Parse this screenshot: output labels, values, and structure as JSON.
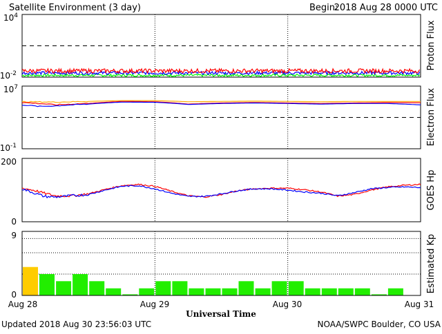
{
  "header": {
    "title": "Satellite Environment (3 day)",
    "begin_label": "Begin:",
    "begin_value": "2018 Aug 28 0000 UTC"
  },
  "footer": {
    "updated": "Updated 2018 Aug 30 23:56:03 UTC",
    "credit": "NOAA/SWPC Boulder, CO USA",
    "xlabel": "Universal Time"
  },
  "x_ticks": [
    "Aug 28",
    "Aug 29",
    "Aug 30",
    "Aug 31"
  ],
  "colors": {
    "red": "#ff0000",
    "blue": "#0000ff",
    "green": "#00ff00",
    "orange": "#ffaa00",
    "kp_green": "#22ee00",
    "kp_yellow": "#ffcc00"
  },
  "chart_data": [
    {
      "type": "line",
      "ylabel": "Proton Flux",
      "yscale": "log",
      "ylim": [
        0.01,
        10000
      ],
      "ytick_top": {
        "base": "10",
        "exp": "4"
      },
      "ytick_bottom": {
        "base": "10",
        "exp": "-2"
      },
      "threshold": 10,
      "series": [
        {
          "color": "#ff0000",
          "level": 0.04,
          "jitter": 0.2
        },
        {
          "color": "#0000ff",
          "level": 0.025,
          "jitter": 0.15
        },
        {
          "color": "#00ff00",
          "level": 0.015,
          "jitter": 0.12
        }
      ]
    },
    {
      "type": "line",
      "ylabel": "Electron Flux",
      "yscale": "log",
      "ylim": [
        0.1,
        10000000
      ],
      "ytick_top": {
        "base": "10",
        "exp": "7"
      },
      "ytick_bottom": {
        "base": "10",
        "exp": "-1"
      },
      "threshold": 1000,
      "series": [
        {
          "color": "#ffaa00",
          "hours": [
            0,
            6,
            12,
            18,
            24,
            30,
            36,
            42,
            48,
            54,
            60,
            66,
            72
          ],
          "values": [
            100000,
            90000,
            110000,
            140000,
            140000,
            100000,
            110000,
            120000,
            110000,
            100000,
            110000,
            110000,
            110000
          ]
        },
        {
          "color": "#ff0000",
          "hours": [
            0,
            6,
            12,
            18,
            24,
            30,
            36,
            42,
            48,
            54,
            60,
            66,
            72
          ],
          "values": [
            80000,
            40000,
            60000,
            110000,
            100000,
            50000,
            70000,
            80000,
            70000,
            60000,
            70000,
            80000,
            75000
          ]
        },
        {
          "color": "#0000ff",
          "hours": [
            0,
            3,
            6,
            12,
            18,
            24,
            30,
            36,
            42,
            48,
            54,
            60,
            66,
            72
          ],
          "values": [
            40000,
            25000,
            30000,
            50000,
            90000,
            85000,
            45000,
            60000,
            70000,
            60000,
            50000,
            60000,
            60000,
            40000
          ]
        }
      ]
    },
    {
      "type": "line",
      "ylabel": "GOES Hp",
      "yscale": "linear",
      "ylim": [
        0,
        200
      ],
      "ytick_top": "200",
      "ytick_bottom": "0",
      "series": [
        {
          "color": "#ff0000",
          "hours": [
            0,
            2,
            4,
            6,
            9,
            12,
            15,
            18,
            21,
            24,
            27,
            30,
            33,
            36,
            39,
            42,
            45,
            48,
            51,
            54,
            57,
            60,
            63,
            66,
            69,
            72
          ],
          "values": [
            106,
            100,
            90,
            82,
            82,
            88,
            102,
            114,
            118,
            112,
            96,
            82,
            78,
            86,
            98,
            104,
            106,
            106,
            101,
            94,
            81,
            86,
            100,
            110,
            115,
            118
          ]
        },
        {
          "color": "#0000ff",
          "hours": [
            0,
            2,
            4,
            6,
            9,
            12,
            15,
            18,
            21,
            24,
            27,
            30,
            33,
            36,
            39,
            42,
            45,
            48,
            51,
            54,
            57,
            60,
            63,
            66,
            69,
            72
          ],
          "values": [
            104,
            92,
            80,
            78,
            82,
            86,
            100,
            112,
            114,
            104,
            90,
            80,
            80,
            88,
            98,
            104,
            104,
            100,
            94,
            90,
            82,
            92,
            104,
            108,
            110,
            108
          ]
        }
      ]
    },
    {
      "type": "bar",
      "ylabel": "Estimated Kp",
      "ylim": [
        0,
        9
      ],
      "ytick_top": "9",
      "ytick_bottom": "0",
      "values": [
        4,
        3,
        2,
        3,
        2,
        1,
        0,
        1,
        2,
        2,
        1,
        1,
        1,
        2,
        1,
        2,
        2,
        1,
        1,
        1,
        1,
        0,
        1
      ]
    }
  ]
}
